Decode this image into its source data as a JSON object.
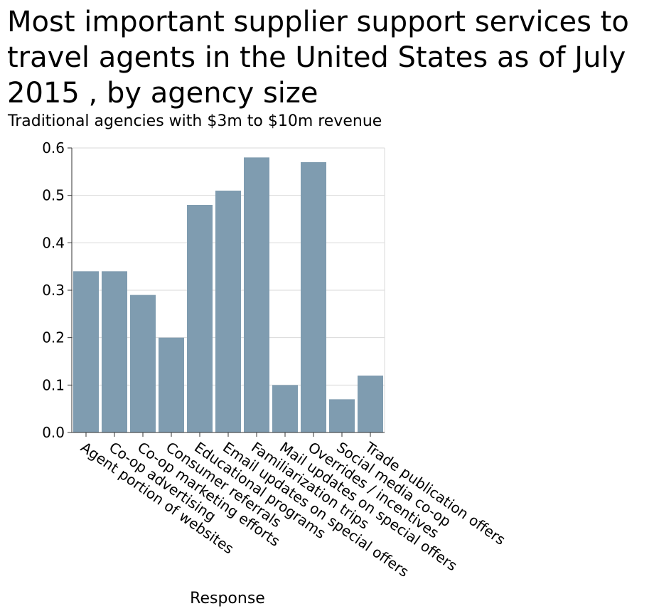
{
  "chart_data": {
    "type": "bar",
    "title": "Most important supplier support services to travel agents in the United States as of July 2015 , by agency size",
    "subtitle": "Traditional agencies with $3m to $10m revenue",
    "xlabel": "Response",
    "ylabel": "",
    "ylim": [
      0,
      0.6
    ],
    "yticks": [
      "0.0",
      "0.1",
      "0.2",
      "0.3",
      "0.4",
      "0.5",
      "0.6"
    ],
    "grid": true,
    "bar_color": "#7f9cb0",
    "categories": [
      "Agent portion of websites",
      "Co-op advertising",
      "Co-op marketing efforts",
      "Consumer referrals",
      "Educational programs",
      "Email updates on special offers",
      "Familiarization trips",
      "Mail updates on special offers",
      "Overrides / incentives",
      "Social media co-op",
      "Trade publication offers"
    ],
    "values": [
      0.34,
      0.34,
      0.29,
      0.2,
      0.48,
      0.51,
      0.58,
      0.1,
      0.57,
      0.07,
      0.12
    ]
  }
}
